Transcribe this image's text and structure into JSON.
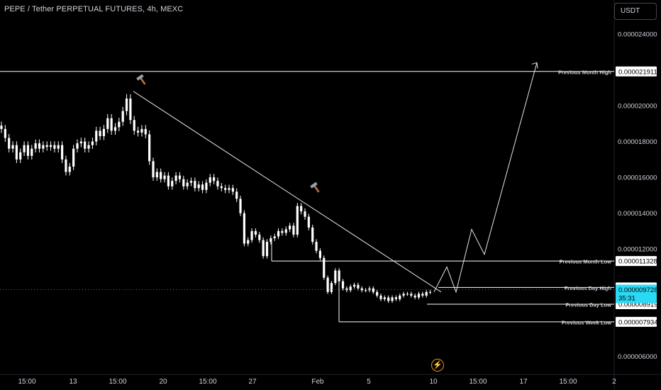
{
  "header": {
    "title": "PEPE / Tether PERPETUAL FUTURES, 4h, MEXC",
    "currency_button": "USDT"
  },
  "colors": {
    "background": "#000000",
    "candle_up": "#ffffff",
    "candle_down": "#ffffff",
    "level_line": "#ffffff",
    "current_price_bg": "#29d9f5",
    "axis_text": "#d1d4dc",
    "accent_bolt": "#f08a24"
  },
  "icons": [
    "hammer-icon",
    "hammer-icon",
    "lightning-icon"
  ],
  "chart_data": {
    "type": "candlestick",
    "symbol": "PEPE / Tether PERPETUAL FUTURES",
    "interval": "4h",
    "exchange": "MEXC",
    "y_axis": {
      "ylim": [
        5e-06,
        2.59e-05
      ],
      "tick_labels": [
        "0.000024000",
        "0.000020000",
        "0.000018000",
        "0.000016000",
        "0.000014000",
        "0.000012000",
        "0.000006000"
      ],
      "tick_values": [
        2.4e-05,
        2e-05,
        1.8e-05,
        1.6e-05,
        1.4e-05,
        1.2e-05,
        6e-06
      ]
    },
    "x_axis": {
      "tick_labels": [
        "15:00",
        "13",
        "15:00",
        "20",
        "15:00",
        "27",
        "Feb",
        "5",
        "10",
        "15:00",
        "17",
        "15:00",
        "2"
      ]
    },
    "levels": [
      {
        "label": "Previous Month High",
        "price_label": "0.000021911",
        "value": 2.1911e-05
      },
      {
        "label": "Previous Month Low",
        "price_label": "0.000011328",
        "value": 1.1328e-05
      },
      {
        "label": "Previous Day High",
        "price_label": "0.000009854",
        "value": 9.854e-06
      },
      {
        "label": "Previous Day Low",
        "price_label": "0.000008919",
        "value": 8.919e-06
      },
      {
        "label": "Previous Week Low",
        "price_label": "0.000007934",
        "value": 7.934e-06
      }
    ],
    "current_price": {
      "price_label": "0.000009728",
      "value": 9.728e-06,
      "countdown": "35:31"
    },
    "trendline": [
      {
        "x": "Jan 16",
        "y": 2.08e-05
      },
      {
        "x": "Feb 11",
        "y": 9.6e-06
      }
    ],
    "projection": [
      9.6e-06,
      1.1e-05,
      9.6e-06,
      1.31e-05,
      1.17e-05,
      2.24e-05
    ],
    "candles_close": [
      1.87e-05,
      1.82e-05,
      1.76e-05,
      1.78e-05,
      1.7e-05,
      1.74e-05,
      1.78e-05,
      1.72e-05,
      1.76e-05,
      1.79e-05,
      1.76e-05,
      1.78e-05,
      1.77e-05,
      1.78e-05,
      1.76e-05,
      1.78e-05,
      1.7e-05,
      1.63e-05,
      1.66e-05,
      1.76e-05,
      1.79e-05,
      1.8e-05,
      1.76e-05,
      1.78e-05,
      1.8e-05,
      1.86e-05,
      1.83e-05,
      1.87e-05,
      1.93e-05,
      1.86e-05,
      1.88e-05,
      1.91e-05,
      1.97e-05,
      2.04e-05,
      1.92e-05,
      1.86e-05,
      1.85e-05,
      1.87e-05,
      1.84e-05,
      1.69e-05,
      1.6e-05,
      1.63e-05,
      1.59e-05,
      1.61e-05,
      1.55e-05,
      1.58e-05,
      1.61e-05,
      1.59e-05,
      1.55e-05,
      1.57e-05,
      1.58e-05,
      1.54e-05,
      1.56e-05,
      1.53e-05,
      1.57e-05,
      1.6e-05,
      1.58e-05,
      1.55e-05,
      1.54e-05,
      1.53e-05,
      1.54e-05,
      1.52e-05,
      1.48e-05,
      1.4e-05,
      1.23e-05,
      1.25e-05,
      1.3e-05,
      1.28e-05,
      1.25e-05,
      1.16e-05,
      1.24e-05,
      1.26e-05,
      1.27e-05,
      1.3e-05,
      1.29e-05,
      1.31e-05,
      1.33e-05,
      1.28e-05,
      1.44e-05,
      1.41e-05,
      1.38e-05,
      1.32e-05,
      1.24e-05,
      1.19e-05,
      1.15e-05,
      1.04e-05,
      9.6e-06,
      1.01e-05,
      1.08e-05,
      1.02e-05,
      9.8e-06,
      9.7e-06,
      9.9e-06,
      1e-05,
      9.8e-06,
      9.7e-06,
      9.7e-06,
      9.8e-06,
      9.6e-06,
      9.4e-06,
      9.2e-06,
      9.3e-06,
      9.1e-06,
      9.3e-06,
      9.2e-06,
      9.4e-06,
      9.5e-06,
      9.5e-06,
      9.4e-06,
      9.3e-06,
      9.5e-06,
      9.4e-06,
      9.6e-06,
      9.6e-06
    ]
  }
}
